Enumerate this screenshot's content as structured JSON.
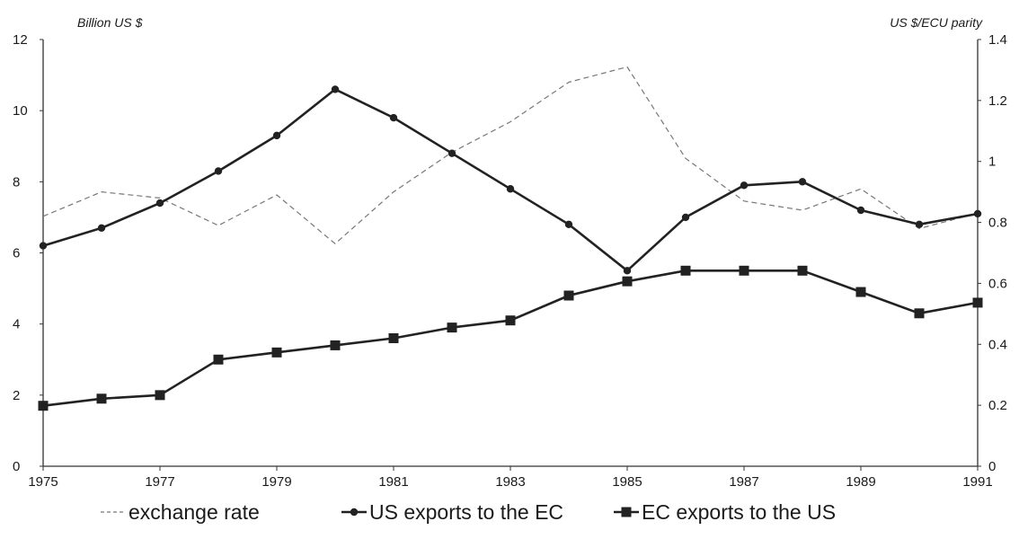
{
  "chart_data": {
    "type": "line",
    "title": "",
    "left_axis_label": "Billion US $",
    "right_axis_label": "US $/ECU parity",
    "x": [
      1975,
      1976,
      1977,
      1978,
      1979,
      1980,
      1981,
      1982,
      1983,
      1984,
      1985,
      1986,
      1987,
      1988,
      1989,
      1990,
      1991
    ],
    "x_tick_labels": [
      "1975",
      "1977",
      "1979",
      "1981",
      "1983",
      "1985",
      "1987",
      "1989",
      "1991"
    ],
    "x_ticks": [
      1975,
      1977,
      1979,
      1981,
      1983,
      1985,
      1987,
      1989,
      1991
    ],
    "ylim_left": [
      0,
      12
    ],
    "y_ticks_left": [
      0,
      2,
      4,
      6,
      8,
      10,
      12
    ],
    "ylim_right": [
      0,
      1.4
    ],
    "y_ticks_right": [
      0,
      0.2,
      0.4,
      0.6,
      0.8,
      1,
      1.2,
      1.4
    ],
    "grid": false,
    "legend_position": "bottom",
    "series": [
      {
        "name": "exchange rate",
        "axis": "right",
        "style": "dashed",
        "color": "#777777",
        "values": [
          0.82,
          0.9,
          0.88,
          0.79,
          0.89,
          0.73,
          0.9,
          1.03,
          1.13,
          1.26,
          1.31,
          1.01,
          0.87,
          0.84,
          0.91,
          0.78,
          0.83
        ]
      },
      {
        "name": "US exports to the EC",
        "axis": "left",
        "style": "solid",
        "marker": "circle",
        "color": "#222222",
        "values": [
          6.2,
          6.7,
          7.4,
          8.3,
          9.3,
          10.6,
          9.8,
          8.8,
          7.8,
          6.8,
          5.5,
          7.0,
          7.9,
          8.0,
          7.2,
          6.8,
          7.1
        ]
      },
      {
        "name": "EC exports to the US",
        "axis": "left",
        "style": "solid",
        "marker": "square",
        "color": "#222222",
        "values": [
          1.7,
          1.9,
          2.0,
          3.0,
          3.2,
          3.4,
          3.6,
          3.9,
          4.1,
          4.8,
          5.2,
          5.5,
          5.5,
          5.5,
          4.9,
          4.3,
          4.6
        ]
      }
    ]
  }
}
